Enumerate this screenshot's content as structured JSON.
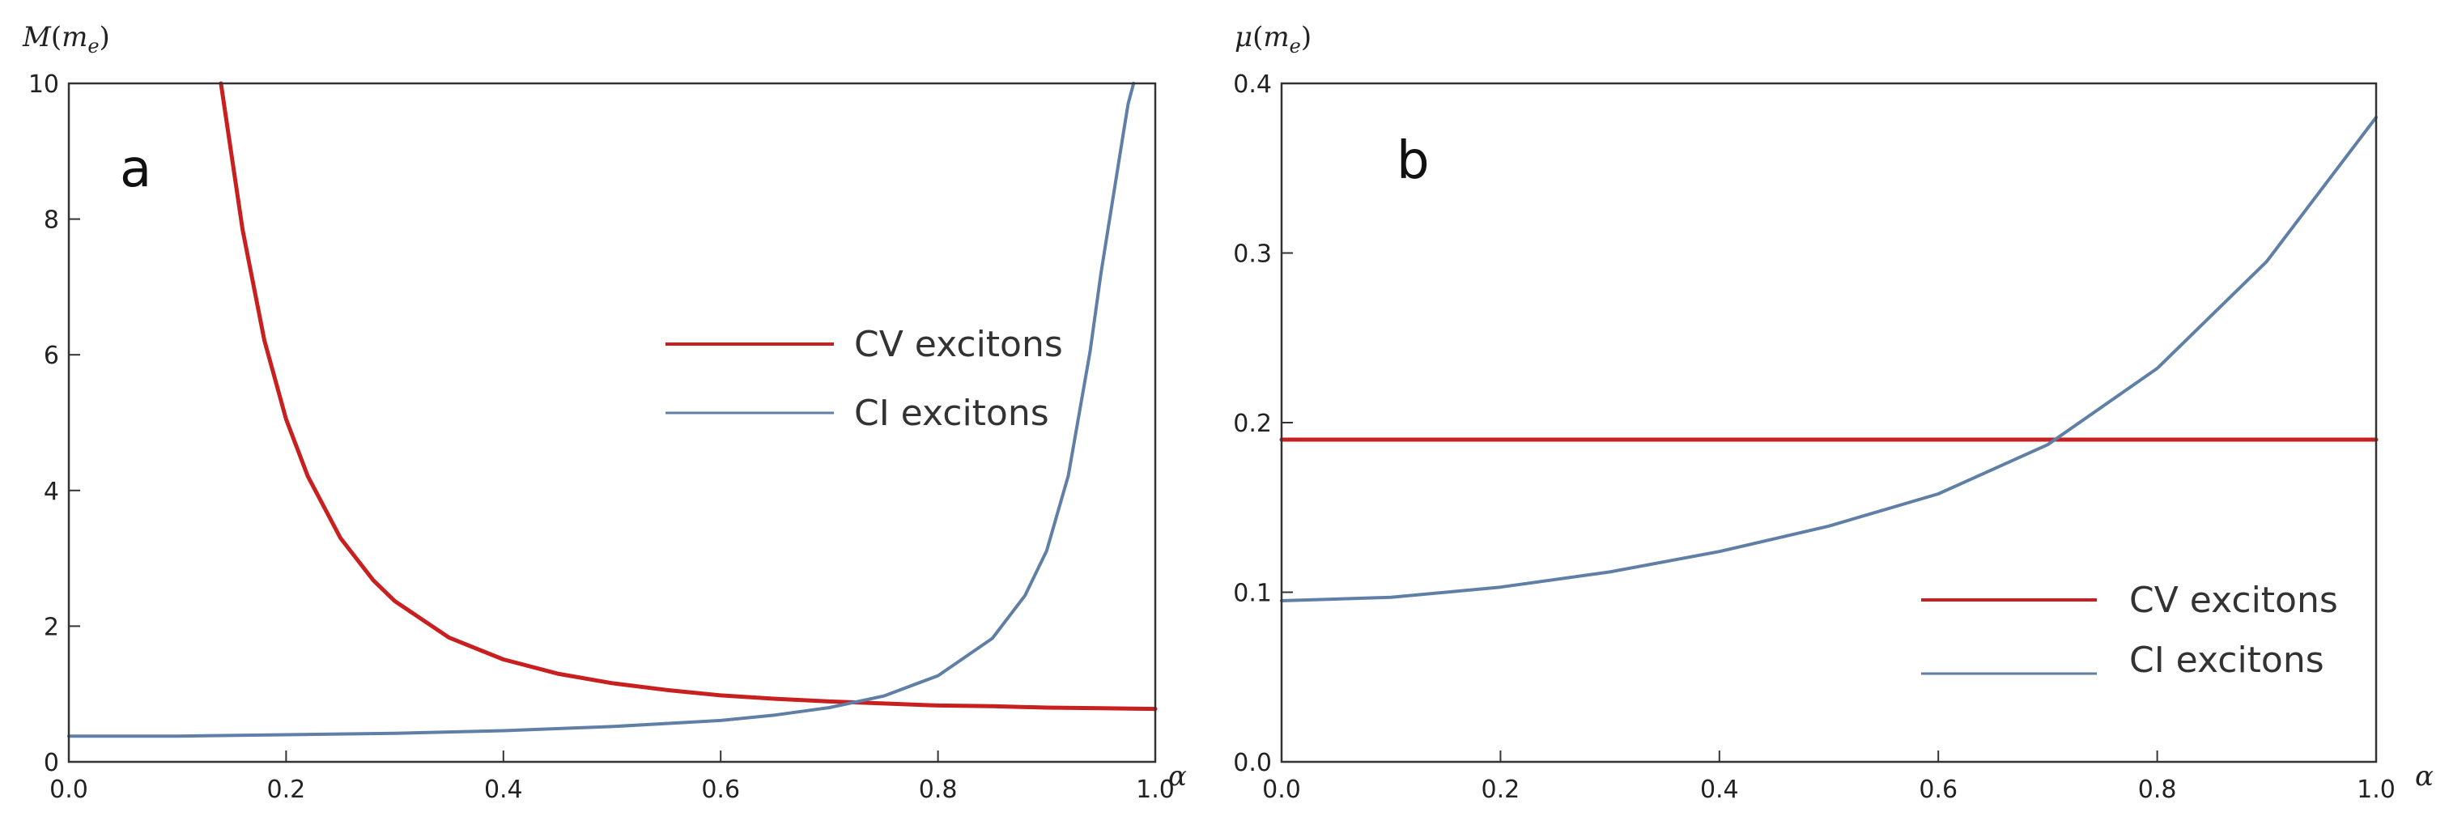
{
  "chart_data": [
    {
      "type": "line",
      "panel_label": "a",
      "xlabel": "α",
      "ylabel": "M(m_e)",
      "ylabel_parts": {
        "main": "M",
        "open": "(",
        "var": "m",
        "sub": "e",
        "close": ")"
      },
      "xlim": [
        0,
        1
      ],
      "ylim": [
        0,
        10
      ],
      "x_ticks": [
        0.0,
        0.2,
        0.4,
        0.6,
        0.8,
        1.0
      ],
      "x_tick_labels": [
        "0.0",
        "0.2",
        "0.4",
        "0.6",
        "0.8",
        "1.0"
      ],
      "y_ticks": [
        0,
        2,
        4,
        6,
        8,
        10
      ],
      "y_tick_labels": [
        "0",
        "2",
        "4",
        "6",
        "8",
        "10"
      ],
      "grid": false,
      "legend_position": "center-right",
      "series": [
        {
          "name": "CV excitons",
          "color": "#c81f1f",
          "x": [
            0.14,
            0.16,
            0.18,
            0.2,
            0.22,
            0.25,
            0.28,
            0.3,
            0.35,
            0.4,
            0.45,
            0.5,
            0.55,
            0.6,
            0.65,
            0.7,
            0.75,
            0.8,
            0.85,
            0.9,
            0.95,
            1.0
          ],
          "y": [
            10.0,
            7.84,
            6.21,
            5.05,
            4.21,
            3.3,
            2.68,
            2.37,
            1.83,
            1.51,
            1.3,
            1.16,
            1.06,
            0.98,
            0.93,
            0.89,
            0.86,
            0.83,
            0.82,
            0.8,
            0.79,
            0.78
          ]
        },
        {
          "name": "CI excitons",
          "color": "#5f7fa6",
          "x": [
            0.0,
            0.1,
            0.2,
            0.3,
            0.4,
            0.5,
            0.6,
            0.65,
            0.7,
            0.75,
            0.8,
            0.85,
            0.88,
            0.9,
            0.92,
            0.94,
            0.95,
            0.96,
            0.97,
            0.975,
            0.98
          ],
          "y": [
            0.38,
            0.38,
            0.4,
            0.42,
            0.46,
            0.52,
            0.61,
            0.69,
            0.8,
            0.97,
            1.27,
            1.82,
            2.45,
            3.11,
            4.22,
            6.05,
            7.2,
            8.2,
            9.2,
            9.7,
            10.0
          ]
        }
      ]
    },
    {
      "type": "line",
      "panel_label": "b",
      "xlabel": "α",
      "ylabel": "μ(m_e)",
      "ylabel_parts": {
        "main": "μ",
        "open": "(",
        "var": "m",
        "sub": "e",
        "close": ")"
      },
      "xlim": [
        0,
        1
      ],
      "ylim": [
        0,
        0.4
      ],
      "x_ticks": [
        0.0,
        0.2,
        0.4,
        0.6,
        0.8,
        1.0
      ],
      "x_tick_labels": [
        "0.0",
        "0.2",
        "0.4",
        "0.6",
        "0.8",
        "1.0"
      ],
      "y_ticks": [
        0.0,
        0.1,
        0.2,
        0.3,
        0.4
      ],
      "y_tick_labels": [
        "0.0",
        "0.1",
        "0.2",
        "0.3",
        "0.4"
      ],
      "grid": false,
      "legend_position": "bottom-right",
      "series": [
        {
          "name": "CV excitons",
          "color": "#c81f1f",
          "x": [
            0.0,
            1.0
          ],
          "y": [
            0.19,
            0.19
          ]
        },
        {
          "name": "CI excitons",
          "color": "#5f7fa6",
          "x": [
            0.0,
            0.1,
            0.2,
            0.3,
            0.4,
            0.5,
            0.6,
            0.7,
            0.8,
            0.9,
            1.0
          ],
          "y": [
            0.095,
            0.097,
            0.103,
            0.112,
            0.124,
            0.139,
            0.158,
            0.187,
            0.232,
            0.295,
            0.38
          ]
        }
      ]
    }
  ]
}
